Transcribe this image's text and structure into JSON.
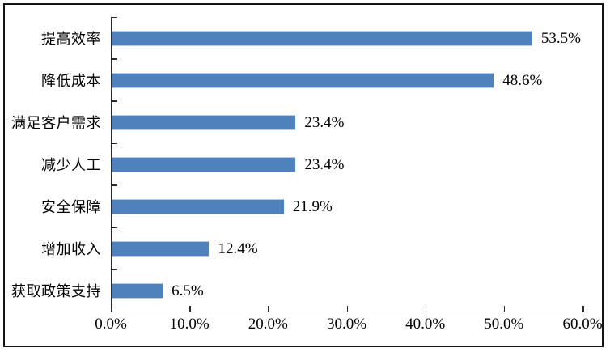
{
  "chart_data": {
    "type": "bar",
    "orientation": "horizontal",
    "title": "",
    "xlabel": "",
    "ylabel": "",
    "categories": [
      "提高效率",
      "降低成本",
      "满足客户需求",
      "减少人工",
      "安全保障",
      "增加收入",
      "获取政策支持"
    ],
    "values": [
      53.5,
      48.6,
      23.4,
      23.4,
      21.9,
      12.4,
      6.5
    ],
    "value_labels": [
      "53.5%",
      "48.6%",
      "23.4%",
      "23.4%",
      "21.9%",
      "12.4%",
      "6.5%"
    ],
    "x_tick_labels": [
      "0.0%",
      "10.0%",
      "20.0%",
      "30.0%",
      "40.0%",
      "50.0%",
      "60.0%"
    ],
    "xlim": [
      0,
      60
    ],
    "grid": false,
    "legend": "none",
    "bar_color": "#4F81BD",
    "bar_edge_color": "#B5C9E2",
    "axis_color": "#2b2b2b",
    "frame_color": "#141414"
  }
}
